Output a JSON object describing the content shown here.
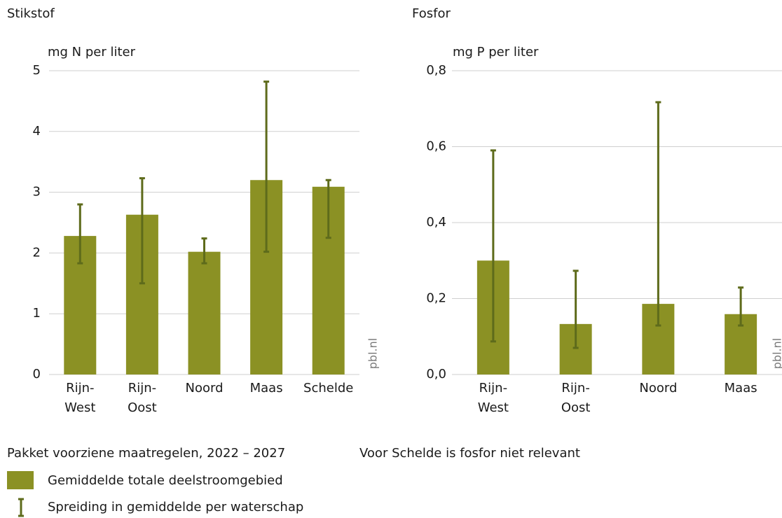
{
  "chart_data": [
    {
      "type": "bar",
      "title": "Stikstof",
      "y_label": "mg N per liter",
      "source": "pbl.nl",
      "categories": [
        "Rijn-\nWest",
        "Rijn-\nOost",
        "Noord",
        "Maas",
        "Schelde"
      ],
      "series": [
        {
          "color": "#8b9124",
          "error_color": "#5e6b1b",
          "values": [
            2.28,
            2.63,
            2.02,
            3.2,
            3.09
          ],
          "error_low": [
            1.83,
            1.5,
            1.83,
            2.02,
            2.25
          ],
          "error_high": [
            2.8,
            3.23,
            2.24,
            4.82,
            3.2
          ]
        }
      ],
      "ylim": [
        0,
        5
      ],
      "yticks": [
        0,
        1,
        2,
        3,
        4,
        5
      ],
      "grid": true
    },
    {
      "type": "bar",
      "title": "Fosfor",
      "y_label": "mg P per liter",
      "source": "pbl.nl",
      "categories": [
        "Rijn-\nWest",
        "Rijn-\nOost",
        "Noord",
        "Maas"
      ],
      "series": [
        {
          "color": "#8b9124",
          "error_color": "#5e6b1b",
          "values": [
            0.3,
            0.133,
            0.186,
            0.159
          ],
          "error_low": [
            0.087,
            0.07,
            0.129,
            0.129
          ],
          "error_high": [
            0.59,
            0.273,
            0.717,
            0.229
          ]
        }
      ],
      "ylim": [
        0,
        0.8
      ],
      "yticks": [
        {
          "value": 0,
          "label": "0,0"
        },
        {
          "value": 0.2,
          "label": "0,2"
        },
        {
          "value": 0.4,
          "label": "0,4"
        },
        {
          "value": 0.6,
          "label": "0,6"
        },
        {
          "value": 0.8,
          "label": "0,8"
        }
      ],
      "grid": true
    }
  ],
  "legend": {
    "title": "Pakket voorziene maatregelen, 2022 – 2027",
    "bar_label": "Gemiddelde totale deelstroomgebied",
    "error_label": "Spreiding in gemiddelde per waterschap"
  },
  "note": "Voor Schelde is fosfor niet relevant"
}
